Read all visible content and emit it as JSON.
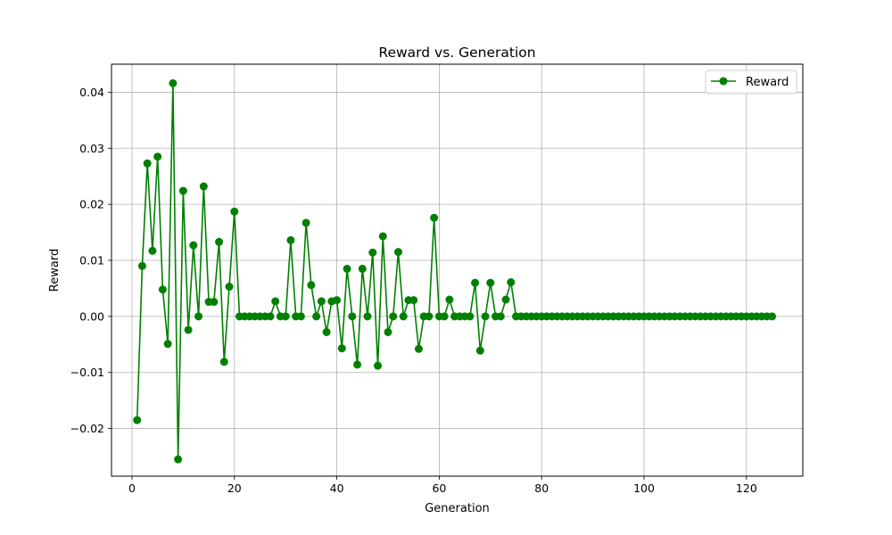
{
  "chart_data": {
    "type": "line",
    "title": "Reward vs. Generation",
    "xlabel": "Generation",
    "ylabel": "Reward",
    "xlim": [
      -4,
      131
    ],
    "ylim": [
      -0.0285,
      0.045
    ],
    "xticks": [
      0,
      20,
      40,
      60,
      80,
      100,
      120
    ],
    "xtick_labels": [
      "0",
      "20",
      "40",
      "60",
      "80",
      "100",
      "120"
    ],
    "yticks": [
      -0.02,
      -0.01,
      0.0,
      0.01,
      0.02,
      0.03,
      0.04
    ],
    "ytick_labels": [
      "−0.02",
      "−0.01",
      "0.00",
      "0.01",
      "0.02",
      "0.03",
      "0.04"
    ],
    "grid": true,
    "legend_position": "top-right",
    "colors": {
      "series": "#008000",
      "grid": "#b0b0b0",
      "axis": "#000000"
    },
    "series": [
      {
        "name": "Reward",
        "marker": "circle",
        "x": [
          1,
          2,
          3,
          4,
          5,
          6,
          7,
          8,
          9,
          10,
          11,
          12,
          13,
          14,
          15,
          16,
          17,
          18,
          19,
          20,
          21,
          22,
          23,
          24,
          25,
          26,
          27,
          28,
          29,
          30,
          31,
          32,
          33,
          34,
          35,
          36,
          37,
          38,
          39,
          40,
          41,
          42,
          43,
          44,
          45,
          46,
          47,
          48,
          49,
          50,
          51,
          52,
          53,
          54,
          55,
          56,
          57,
          58,
          59,
          60,
          61,
          62,
          63,
          64,
          65,
          66,
          67,
          68,
          69,
          70,
          71,
          72,
          73,
          74,
          75,
          76,
          77,
          78,
          79,
          80,
          81,
          82,
          83,
          84,
          85,
          86,
          87,
          88,
          89,
          90,
          91,
          92,
          93,
          94,
          95,
          96,
          97,
          98,
          99,
          100,
          101,
          102,
          103,
          104,
          105,
          106,
          107,
          108,
          109,
          110,
          111,
          112,
          113,
          114,
          115,
          116,
          117,
          118,
          119,
          120,
          121,
          122,
          123,
          124,
          125
        ],
        "values": [
          -0.0185,
          0.009,
          0.0273,
          0.0117,
          0.0285,
          0.0048,
          -0.0049,
          0.0416,
          -0.0255,
          0.0224,
          -0.0024,
          0.0127,
          0.0,
          0.0232,
          0.0026,
          0.0026,
          0.0133,
          -0.0081,
          0.0053,
          0.0187,
          0.0,
          0.0,
          0.0,
          0.0,
          0.0,
          0.0,
          0.0,
          0.0027,
          0.0,
          0.0,
          0.0136,
          0.0,
          0.0,
          0.0167,
          0.0056,
          0.0,
          0.0027,
          -0.0028,
          0.0027,
          0.0029,
          -0.0057,
          0.0085,
          0.0,
          -0.0086,
          0.0085,
          0.0,
          0.0114,
          -0.0088,
          0.0143,
          -0.0028,
          0.0,
          0.0115,
          0.0,
          0.0029,
          0.0029,
          -0.0058,
          0.0,
          0.0,
          0.0176,
          0.0,
          0.0,
          0.003,
          0.0,
          0.0,
          0.0,
          0.0,
          0.006,
          -0.0061,
          0.0,
          0.006,
          0.0,
          0.0,
          0.003,
          0.0061,
          0.0,
          0.0,
          0.0,
          0.0,
          0.0,
          0.0,
          0.0,
          0.0,
          0.0,
          0.0,
          0.0,
          0.0,
          0.0,
          0.0,
          0.0,
          0.0,
          0.0,
          0.0,
          0.0,
          0.0,
          0.0,
          0.0,
          0.0,
          0.0,
          0.0,
          0.0,
          0.0,
          0.0,
          0.0,
          0.0,
          0.0,
          0.0,
          0.0,
          0.0,
          0.0,
          0.0,
          0.0,
          0.0,
          0.0,
          0.0,
          0.0,
          0.0,
          0.0,
          0.0,
          0.0,
          0.0,
          0.0,
          0.0,
          0.0,
          0.0,
          0.0
        ]
      }
    ]
  }
}
